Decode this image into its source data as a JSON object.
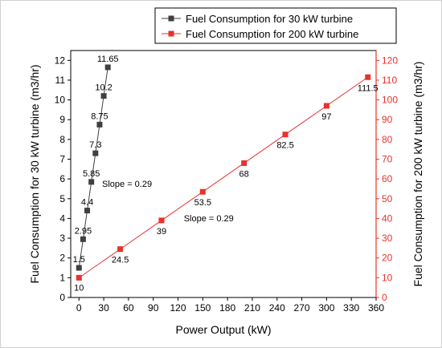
{
  "chart_data": {
    "type": "line",
    "x_label": "Power Output (kW)",
    "x_range": [
      -10,
      360
    ],
    "x_ticks": [
      0,
      30,
      60,
      90,
      120,
      150,
      180,
      210,
      240,
      270,
      300,
      330,
      360
    ],
    "y_left": {
      "label": "Fuel Consumption for 30 kW turbine (m3/hr)",
      "range": [
        0,
        12.5
      ],
      "ticks": [
        0,
        1,
        2,
        3,
        4,
        5,
        6,
        7,
        8,
        9,
        10,
        11,
        12
      ]
    },
    "y_right": {
      "label": "Fuel Consumption for 200 kW turbine (m3/hr)",
      "range": [
        0,
        125
      ],
      "ticks": [
        0,
        10,
        20,
        30,
        40,
        50,
        60,
        70,
        80,
        90,
        100,
        110,
        120
      ],
      "color": "#e8322d"
    },
    "grid": false,
    "legend_position": "top-right",
    "series": [
      {
        "name": "Fuel Consumption for 30 kW turbine",
        "axis": "left",
        "color": "#404040",
        "marker": "square",
        "x": [
          0,
          5,
          10,
          15,
          20,
          25,
          30,
          35
        ],
        "y": [
          1.5,
          2.95,
          4.4,
          5.85,
          7.3,
          8.75,
          10.2,
          11.65
        ],
        "labels": [
          "1.5",
          "2.95",
          "4.4",
          "5.85",
          "7.3",
          "8.75",
          "10.2",
          "11.65"
        ]
      },
      {
        "name": "Fuel Consumption for 200 kW turbine",
        "axis": "right",
        "color": "#e8322d",
        "marker": "square",
        "x": [
          0,
          50,
          100,
          150,
          200,
          250,
          300,
          350
        ],
        "y": [
          10,
          24.5,
          39,
          53.5,
          68,
          82.5,
          97,
          111.5
        ],
        "labels": [
          "10",
          "24.5",
          "39",
          "53.5",
          "68",
          "82.5",
          "97",
          "111.5"
        ]
      }
    ],
    "annotations": [
      {
        "text": "Slope = 0.29",
        "x": 28,
        "y_left": 5.6
      },
      {
        "text": "Slope = 0.29",
        "x": 127,
        "y_left": 3.85
      }
    ]
  }
}
